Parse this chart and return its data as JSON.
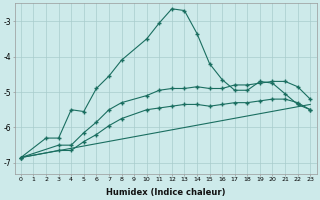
{
  "xlabel": "Humidex (Indice chaleur)",
  "background_color": "#cdeaea",
  "grid_color": "#a8cccc",
  "line_color": "#1a6e60",
  "xlim": [
    -0.5,
    23.5
  ],
  "ylim": [
    -7.3,
    -2.5
  ],
  "yticks": [
    -7,
    -6,
    -5,
    -4,
    -3
  ],
  "series1_x": [
    0,
    2,
    3,
    4,
    5,
    6,
    7,
    8,
    10,
    11,
    12,
    13,
    14,
    15,
    16,
    17,
    18,
    19,
    20,
    21,
    22,
    23
  ],
  "series1_y": [
    -6.85,
    -6.3,
    -6.3,
    -5.5,
    -5.55,
    -4.9,
    -4.55,
    -4.1,
    -3.5,
    -3.05,
    -2.65,
    -2.7,
    -3.35,
    -4.2,
    -4.65,
    -4.95,
    -4.95,
    -4.7,
    -4.75,
    -5.05,
    -5.35,
    -5.5
  ],
  "series2_x": [
    0,
    3,
    4,
    5,
    6,
    7,
    8,
    10,
    11,
    12,
    13,
    14,
    15,
    16,
    17,
    18,
    19,
    20,
    21,
    22,
    23
  ],
  "series2_y": [
    -6.85,
    -6.5,
    -6.5,
    -6.15,
    -5.85,
    -5.5,
    -5.3,
    -5.1,
    -4.95,
    -4.9,
    -4.9,
    -4.85,
    -4.9,
    -4.9,
    -4.8,
    -4.8,
    -4.75,
    -4.7,
    -4.7,
    -4.85,
    -5.2
  ],
  "series3_x": [
    0,
    23
  ],
  "series3_y": [
    -6.85,
    -5.35
  ],
  "series4_x": [
    0,
    3,
    4,
    5,
    6,
    7,
    8,
    10,
    11,
    12,
    13,
    14,
    15,
    16,
    17,
    18,
    19,
    20,
    21,
    22,
    23
  ],
  "series4_y": [
    -6.85,
    -6.65,
    -6.65,
    -6.4,
    -6.2,
    -5.95,
    -5.75,
    -5.5,
    -5.45,
    -5.4,
    -5.35,
    -5.35,
    -5.4,
    -5.35,
    -5.3,
    -5.3,
    -5.25,
    -5.2,
    -5.2,
    -5.3,
    -5.5
  ]
}
